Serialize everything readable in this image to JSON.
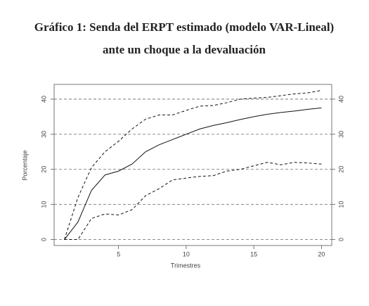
{
  "chart_data": {
    "type": "line",
    "title": "Gráfico 1: Senda del ERPT estimado (modelo VAR-Lineal)",
    "subtitle": "ante un choque a la devaluación",
    "x_label": "Trimestres",
    "y_label": "Porcentaje",
    "x": [
      1,
      2,
      3,
      4,
      5,
      6,
      7,
      8,
      9,
      10,
      11,
      12,
      13,
      14,
      15,
      16,
      17,
      18,
      19,
      20
    ],
    "series": [
      {
        "color": "#111111",
        "dash": "solid",
        "values": [
          0,
          5,
          14,
          18.4,
          19.5,
          21.5,
          25,
          27,
          28.5,
          30,
          31.5,
          32.5,
          33.3,
          34.2,
          35,
          35.7,
          36.2,
          36.6,
          37.1,
          37.5
        ]
      },
      {
        "color": "#111111",
        "dash": "dashed",
        "values": [
          0,
          12,
          20.5,
          25,
          28,
          31.5,
          34.3,
          35.5,
          35.5,
          36.8,
          38,
          38.2,
          39,
          40,
          40.3,
          40.5,
          41,
          41.5,
          41.8,
          42.5
        ]
      },
      {
        "color": "#111111",
        "dash": "dashed",
        "values": [
          0,
          0,
          6,
          7.3,
          7,
          8.5,
          12.5,
          14.5,
          17,
          17.5,
          18,
          18.2,
          19.5,
          20,
          21,
          22,
          21.3,
          22,
          21.8,
          21.5
        ]
      }
    ],
    "xlim": [
      0.24,
      20.76
    ],
    "xticks": [
      5,
      10,
      15,
      20
    ],
    "ylim": [
      -1.7,
      44.2
    ],
    "yticks": [
      0,
      10,
      20,
      30,
      40
    ],
    "y2lim": [
      -1.7,
      44.2
    ],
    "y2ticks": [
      0,
      10,
      20,
      30,
      40
    ],
    "grid": true
  }
}
